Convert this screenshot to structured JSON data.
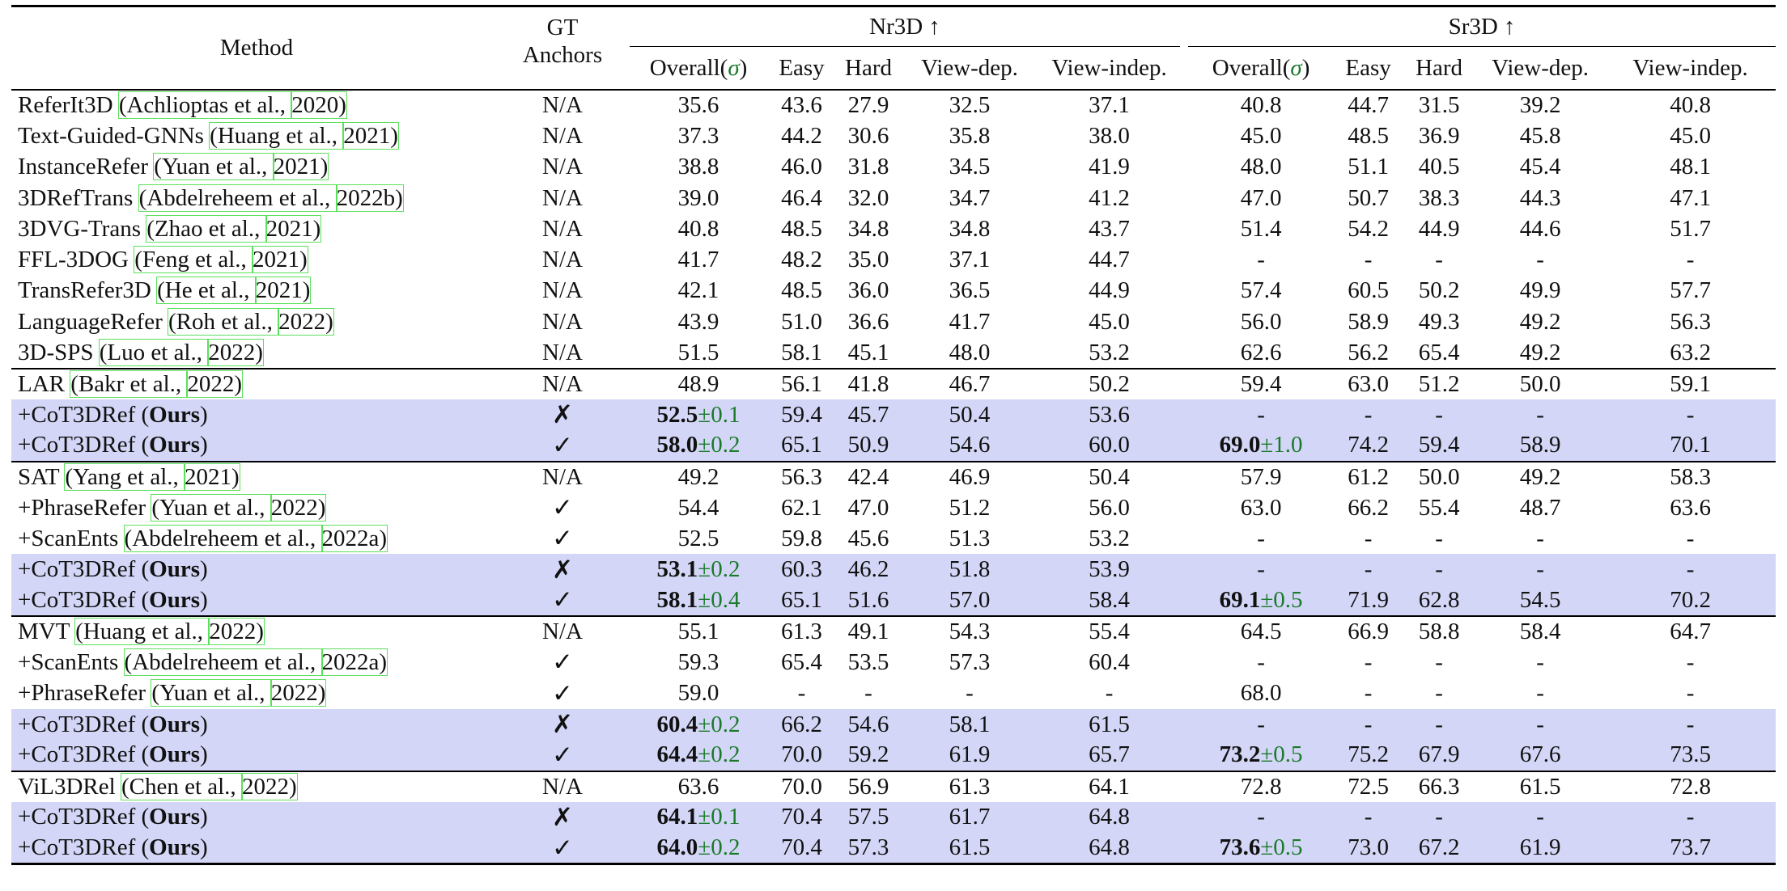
{
  "header": {
    "method": "Method",
    "gt_anchors_line1": "GT",
    "gt_anchors_line2": "Anchors",
    "nr3d": "Nr3D ↑",
    "sr3d": "Sr3D ↑",
    "cols": {
      "overall": "Overall(",
      "sigma": "σ",
      "overall_close": ")",
      "easy": "Easy",
      "hard": "Hard",
      "view_dep": "View-dep.",
      "view_indep": "View-indep."
    }
  },
  "groups": [
    {
      "rows": [
        {
          "name": "ReferIt3D",
          "cite_pre": "Achlioptas et al., ",
          "year": "2020",
          "anchors": "N/A",
          "nr": [
            "35.6",
            "43.6",
            "27.9",
            "32.5",
            "37.1"
          ],
          "sr": [
            "40.8",
            "44.7",
            "31.5",
            "39.2",
            "40.8"
          ]
        },
        {
          "name": "Text-Guided-GNNs",
          "cite_pre": "Huang et al., ",
          "year": "2021",
          "anchors": "N/A",
          "nr": [
            "37.3",
            "44.2",
            "30.6",
            "35.8",
            "38.0"
          ],
          "sr": [
            "45.0",
            "48.5",
            "36.9",
            "45.8",
            "45.0"
          ]
        },
        {
          "name": "InstanceRefer",
          "cite_pre": "Yuan et al., ",
          "year": "2021",
          "anchors": "N/A",
          "nr": [
            "38.8",
            "46.0",
            "31.8",
            "34.5",
            "41.9"
          ],
          "sr": [
            "48.0",
            "51.1",
            "40.5",
            "45.4",
            "48.1"
          ]
        },
        {
          "name": "3DRefTrans",
          "cite_pre": "Abdelreheem et al., ",
          "year": "2022b",
          "anchors": "N/A",
          "nr": [
            "39.0",
            "46.4",
            "32.0",
            "34.7",
            "41.2"
          ],
          "sr": [
            "47.0",
            "50.7",
            "38.3",
            "44.3",
            "47.1"
          ]
        },
        {
          "name": "3DVG-Trans",
          "cite_pre": "Zhao et al., ",
          "year": "2021",
          "anchors": "N/A",
          "nr": [
            "40.8",
            "48.5",
            "34.8",
            "34.8",
            "43.7"
          ],
          "sr": [
            "51.4",
            "54.2",
            "44.9",
            "44.6",
            "51.7"
          ]
        },
        {
          "name": "FFL-3DOG",
          "cite_pre": "Feng et al., ",
          "year": "2021",
          "anchors": "N/A",
          "nr": [
            "41.7",
            "48.2",
            "35.0",
            "37.1",
            "44.7"
          ],
          "sr": [
            "-",
            "-",
            "-",
            "-",
            "-"
          ]
        },
        {
          "name": "TransRefer3D",
          "cite_pre": "He et al., ",
          "year": "2021",
          "anchors": "N/A",
          "nr": [
            "42.1",
            "48.5",
            "36.0",
            "36.5",
            "44.9"
          ],
          "sr": [
            "57.4",
            "60.5",
            "50.2",
            "49.9",
            "57.7"
          ]
        },
        {
          "name": "LanguageRefer",
          "cite_pre": "Roh et al., ",
          "year": "2022",
          "anchors": "N/A",
          "nr": [
            "43.9",
            "51.0",
            "36.6",
            "41.7",
            "45.0"
          ],
          "sr": [
            "56.0",
            "58.9",
            "49.3",
            "49.2",
            "56.3"
          ]
        },
        {
          "name": "3D-SPS",
          "cite_pre": "Luo et al., ",
          "year": "2022",
          "anchors": "N/A",
          "nr": [
            "51.5",
            "58.1",
            "45.1",
            "48.0",
            "53.2"
          ],
          "sr": [
            "62.6",
            "56.2",
            "65.4",
            "49.2",
            "63.2"
          ]
        }
      ]
    },
    {
      "rows": [
        {
          "name": "LAR",
          "cite_pre": "Bakr et al., ",
          "year": "2022",
          "anchors": "N/A",
          "nr": [
            "48.9",
            "56.1",
            "41.8",
            "46.7",
            "50.2"
          ],
          "sr": [
            "59.4",
            "63.0",
            "51.2",
            "50.0",
            "59.1"
          ]
        },
        {
          "ours": true,
          "name": "+CoT3DRef",
          "ours_label": "Ours",
          "anchors": "✗",
          "nr_overall": "52.5",
          "nr_sigma": "±0.1",
          "nr": [
            "59.4",
            "45.7",
            "50.4",
            "53.6"
          ],
          "sr_dash": true,
          "sr": [
            "-",
            "-",
            "-",
            "-",
            "-"
          ]
        },
        {
          "ours": true,
          "name": "+CoT3DRef",
          "ours_label": "Ours",
          "anchors": "✓",
          "nr_overall": "58.0",
          "nr_sigma": "±0.2",
          "nr": [
            "65.1",
            "50.9",
            "54.6",
            "60.0"
          ],
          "sr_overall": "69.0",
          "sr_sigma": "±1.0",
          "sr": [
            "74.2",
            "59.4",
            "58.9",
            "70.1"
          ]
        }
      ]
    },
    {
      "rows": [
        {
          "name": "SAT",
          "cite_pre": "Yang et al., ",
          "year": "2021",
          "anchors": "N/A",
          "nr": [
            "49.2",
            "56.3",
            "42.4",
            "46.9",
            "50.4"
          ],
          "sr": [
            "57.9",
            "61.2",
            "50.0",
            "49.2",
            "58.3"
          ]
        },
        {
          "name": "+PhraseRefer",
          "cite_pre": "Yuan et al., ",
          "year": "2022",
          "anchors": "✓",
          "nr": [
            "54.4",
            "62.1",
            "47.0",
            "51.2",
            "56.0"
          ],
          "sr": [
            "63.0",
            "66.2",
            "55.4",
            "48.7",
            "63.6"
          ]
        },
        {
          "name": "+ScanEnts",
          "cite_pre": "Abdelreheem et al., ",
          "year": "2022a",
          "anchors": "✓",
          "nr": [
            "52.5",
            "59.8",
            "45.6",
            "51.3",
            "53.2"
          ],
          "sr": [
            "-",
            "-",
            "-",
            "-",
            "-"
          ]
        },
        {
          "ours": true,
          "name": "+CoT3DRef",
          "ours_label": "Ours",
          "anchors": "✗",
          "nr_overall": "53.1",
          "nr_sigma": "±0.2",
          "nr": [
            "60.3",
            "46.2",
            "51.8",
            "53.9"
          ],
          "sr_dash": true,
          "sr": [
            "-",
            "-",
            "-",
            "-",
            "-"
          ]
        },
        {
          "ours": true,
          "name": "+CoT3DRef",
          "ours_label": "Ours",
          "anchors": "✓",
          "nr_overall": "58.1",
          "nr_sigma": "±0.4",
          "nr": [
            "65.1",
            "51.6",
            "57.0",
            "58.4"
          ],
          "sr_overall": "69.1",
          "sr_sigma": "±0.5",
          "sr": [
            "71.9",
            "62.8",
            "54.5",
            "70.2"
          ]
        }
      ]
    },
    {
      "rows": [
        {
          "name": "MVT",
          "cite_pre": "Huang et al., ",
          "year": "2022",
          "anchors": "N/A",
          "nr": [
            "55.1",
            "61.3",
            "49.1",
            "54.3",
            "55.4"
          ],
          "sr": [
            "64.5",
            "66.9",
            "58.8",
            "58.4",
            "64.7"
          ]
        },
        {
          "name": "+ScanEnts",
          "cite_pre": "Abdelreheem et al., ",
          "year": "2022a",
          "anchors": "✓",
          "nr": [
            "59.3",
            "65.4",
            "53.5",
            "57.3",
            "60.4"
          ],
          "sr": [
            "-",
            "-",
            "-",
            "-",
            "-"
          ]
        },
        {
          "name": "+PhraseRefer",
          "cite_pre": "Yuan et al., ",
          "year": "2022",
          "anchors": "✓",
          "nr": [
            "59.0",
            "-",
            "-",
            "-",
            "-"
          ],
          "sr": [
            "68.0",
            "-",
            "-",
            "-",
            "-"
          ]
        },
        {
          "ours": true,
          "name": "+CoT3DRef",
          "ours_label": "Ours",
          "anchors": "✗",
          "nr_overall": "60.4",
          "nr_sigma": "±0.2",
          "nr": [
            "66.2",
            "54.6",
            "58.1",
            "61.5"
          ],
          "sr_dash": true,
          "sr": [
            "-",
            "-",
            "-",
            "-",
            "-"
          ]
        },
        {
          "ours": true,
          "name": "+CoT3DRef",
          "ours_label": "Ours",
          "anchors": "✓",
          "nr_overall": "64.4",
          "nr_sigma": "±0.2",
          "nr": [
            "70.0",
            "59.2",
            "61.9",
            "65.7"
          ],
          "sr_overall": "73.2",
          "sr_sigma": "±0.5",
          "sr": [
            "75.2",
            "67.9",
            "67.6",
            "73.5"
          ]
        }
      ]
    },
    {
      "rows": [
        {
          "name": "ViL3DRel",
          "cite_pre": "Chen et al., ",
          "year": "2022",
          "anchors": "N/A",
          "nr": [
            "63.6",
            "70.0",
            "56.9",
            "61.3",
            "64.1"
          ],
          "sr": [
            "72.8",
            "72.5",
            "66.3",
            "61.5",
            "72.8"
          ]
        },
        {
          "ours": true,
          "name": "+CoT3DRef",
          "ours_label": "Ours",
          "anchors": "✗",
          "nr_overall": "64.1",
          "nr_sigma": "±0.1",
          "nr": [
            "70.4",
            "57.5",
            "61.7",
            "64.8"
          ],
          "sr_dash": true,
          "sr": [
            "-",
            "-",
            "-",
            "-",
            "-"
          ]
        },
        {
          "ours": true,
          "name": "+CoT3DRef",
          "ours_label": "Ours",
          "anchors": "✓",
          "nr_overall": "64.0",
          "nr_sigma": "±0.2",
          "nr": [
            "70.4",
            "57.3",
            "61.5",
            "64.8"
          ],
          "sr_overall": "73.6",
          "sr_sigma": "±0.5",
          "sr": [
            "73.0",
            "67.2",
            "61.9",
            "73.7"
          ]
        }
      ]
    }
  ]
}
